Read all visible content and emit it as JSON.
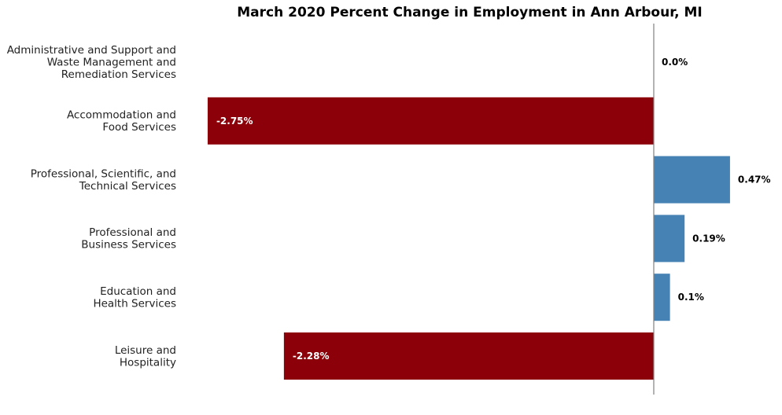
{
  "chart_data": {
    "type": "bar",
    "orientation": "horizontal",
    "title": "March 2020 Percent Change in Employment in Ann Arbour, MI",
    "xlabel": "",
    "ylabel": "",
    "xlim": [
      -2.75,
      0.47
    ],
    "grid": false,
    "categories": [
      [
        "Administrative and Support and",
        "Waste Management and",
        "Remediation Services"
      ],
      [
        "Accommodation and",
        "Food Services"
      ],
      [
        "Professional, Scientific, and",
        "Technical Services"
      ],
      [
        "Professional and",
        "Business Services"
      ],
      [
        "Education and",
        "Health Services"
      ],
      [
        "Leisure and",
        "Hospitality"
      ]
    ],
    "values": [
      0.0,
      -2.75,
      0.47,
      0.19,
      0.1,
      -2.28
    ],
    "value_labels": [
      "0.0%",
      "-2.75%",
      "0.47%",
      "0.19%",
      "0.1%",
      "-2.28%"
    ],
    "colors": {
      "negative": "#8b0009",
      "positive": "#4682b4",
      "axis": "#808080",
      "label_dark": "#000000",
      "label_light": "#ffffff"
    }
  }
}
